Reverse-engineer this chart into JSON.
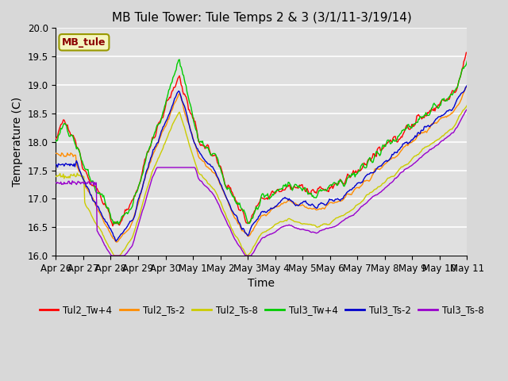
{
  "title": "MB Tule Tower: Tule Temps 2 & 3 (3/1/11-3/19/14)",
  "xlabel": "Time",
  "ylabel": "Temperature (C)",
  "ylim": [
    16.0,
    20.0
  ],
  "yticks": [
    16.0,
    16.5,
    17.0,
    17.5,
    18.0,
    18.5,
    19.0,
    19.5,
    20.0
  ],
  "xtick_labels": [
    "Apr 26",
    "Apr 27",
    "Apr 28",
    "Apr 29",
    "Apr 30",
    "May 1",
    "May 2",
    "May 3",
    "May 4",
    "May 5",
    "May 6",
    "May 7",
    "May 8",
    "May 9",
    "May 10",
    "May 11"
  ],
  "background_color": "#d8d8d8",
  "plot_bg_color": "#e0e0e0",
  "grid_color": "white",
  "legend_label": "MB_tule",
  "series_colors": {
    "Tul2_Tw+4": "#ff0000",
    "Tul2_Ts-2": "#ff8c00",
    "Tul2_Ts-8": "#cccc00",
    "Tul3_Tw+4": "#00cc00",
    "Tul3_Ts-2": "#0000cc",
    "Tul3_Ts-8": "#9900cc"
  },
  "title_fontsize": 11,
  "axis_label_fontsize": 10,
  "tick_fontsize": 8.5
}
